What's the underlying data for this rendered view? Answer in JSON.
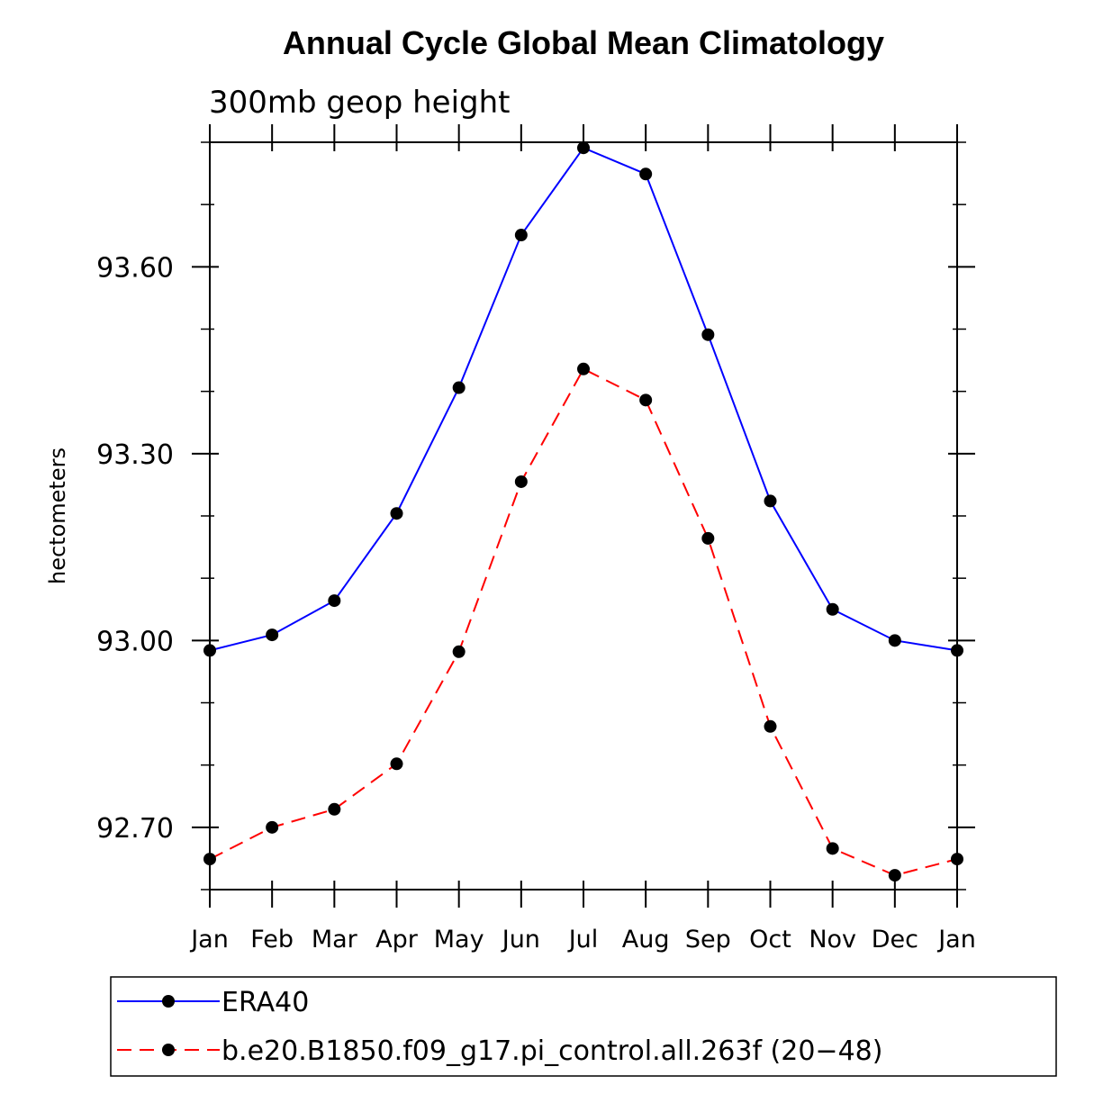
{
  "chart_data": {
    "type": "line",
    "title": "Annual Cycle Global Mean Climatology",
    "subtitle": "300mb geop height",
    "xlabel": "",
    "ylabel": "hectometers",
    "categories": [
      "Jan",
      "Feb",
      "Mar",
      "Apr",
      "May",
      "Jun",
      "Jul",
      "Aug",
      "Sep",
      "Oct",
      "Nov",
      "Dec",
      "Jan"
    ],
    "ylim": [
      92.6,
      93.8
    ],
    "yticks": [
      92.7,
      93.0,
      93.3,
      93.6
    ],
    "ytick_labels": [
      "92.70",
      "93.00",
      "93.30",
      "93.60"
    ],
    "grid": false,
    "legend_position": "bottom",
    "series": [
      {
        "name": "ERA40",
        "color": "#0000ff",
        "dash": "solid",
        "values": [
          92.984,
          93.009,
          93.064,
          93.204,
          93.406,
          93.651,
          93.791,
          93.749,
          93.491,
          93.224,
          93.05,
          93.0,
          92.984
        ]
      },
      {
        "name": "b.e20.B1850.f09_g17.pi_control.all.263f (20−48)",
        "color": "#ff0000",
        "dash": "dashed",
        "values": [
          92.649,
          92.7,
          92.729,
          92.802,
          92.982,
          93.255,
          93.436,
          93.386,
          93.164,
          92.862,
          92.666,
          92.623,
          92.649
        ]
      }
    ]
  }
}
